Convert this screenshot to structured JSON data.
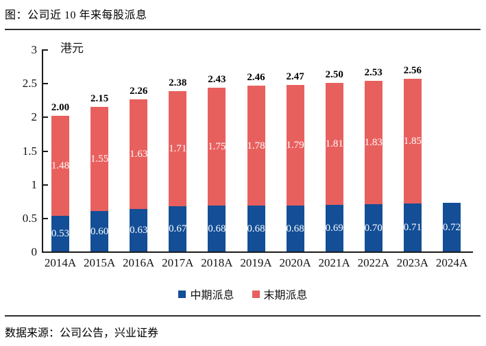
{
  "title": "图：公司近 10 年来每股派息",
  "source_note": "数据来源：公司公告，兴业证券",
  "chart_data": {
    "type": "bar",
    "stacked": true,
    "title": "公司近10年来每股派息",
    "unit_label": "港元",
    "categories": [
      "2014A",
      "2015A",
      "2016A",
      "2017A",
      "2018A",
      "2019A",
      "2020A",
      "2021A",
      "2022A",
      "2023A",
      "2024A"
    ],
    "series": [
      {
        "name": "中期派息",
        "color": "#134E96",
        "values": [
          0.53,
          0.6,
          0.63,
          0.67,
          0.68,
          0.68,
          0.68,
          0.69,
          0.7,
          0.71,
          0.72
        ]
      },
      {
        "name": "末期派息",
        "color": "#E8605E",
        "values": [
          1.48,
          1.55,
          1.63,
          1.71,
          1.75,
          1.78,
          1.79,
          1.81,
          1.83,
          1.85,
          null
        ]
      }
    ],
    "totals": [
      2.0,
      2.15,
      2.26,
      2.38,
      2.43,
      2.46,
      2.47,
      2.5,
      2.53,
      2.56,
      null
    ],
    "ylim": [
      0,
      3
    ],
    "y_ticks": [
      0,
      0.5,
      1,
      1.5,
      2,
      2.5,
      3
    ],
    "grid": false,
    "legend_position": "bottom",
    "value_label_color": "#ffffff",
    "total_label_color": "#000000",
    "axis_color": "#1a1a1a"
  }
}
